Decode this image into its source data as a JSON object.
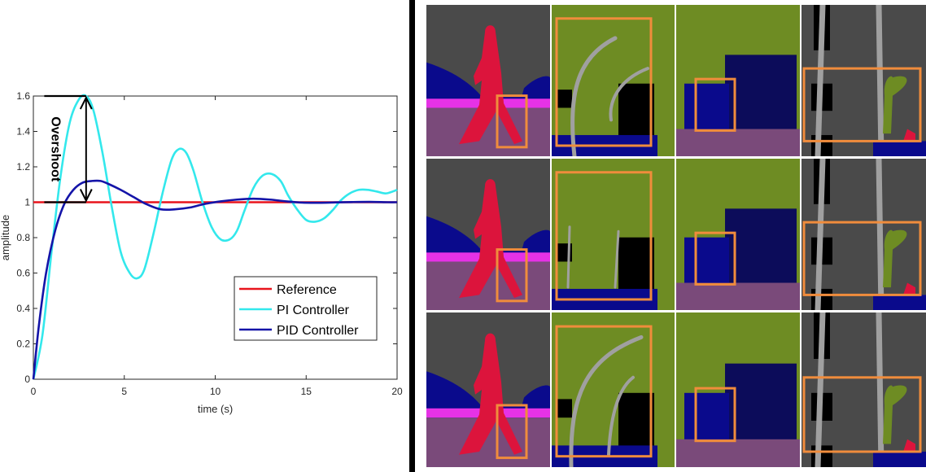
{
  "chart_data": {
    "type": "line",
    "title": "",
    "xlabel": "time (s)",
    "ylabel": "amplitude",
    "xlim": [
      0,
      20
    ],
    "ylim": [
      0,
      1.6
    ],
    "x_ticks": [
      "0",
      "5",
      "10",
      "15",
      "20"
    ],
    "y_ticks": [
      "0",
      "0.2",
      "0.4",
      "0.6",
      "0.8",
      "1",
      "1.2",
      "1.4",
      "1.6"
    ],
    "grid": false,
    "legend_position": "lower-right",
    "series": [
      {
        "name": "Reference",
        "color": "#e8141c",
        "x": [
          0,
          20
        ],
        "y": [
          1,
          1
        ]
      },
      {
        "name": "PI Controller",
        "color": "#33e8ec",
        "x": [
          0,
          0.5,
          1,
          1.5,
          2,
          2.5,
          2.9,
          3.3,
          3.8,
          4.3,
          4.8,
          5.3,
          5.7,
          6.1,
          6.6,
          7.1,
          7.6,
          8.0,
          8.4,
          8.8,
          9.3,
          9.8,
          10.3,
          10.8,
          11.2,
          11.6,
          12.1,
          12.6,
          13.1,
          13.6,
          14.0,
          14.5,
          15.0,
          15.5,
          16.0,
          16.5,
          16.9,
          17.4,
          17.9,
          18.4,
          18.9,
          19.4,
          20.0
        ],
        "y": [
          0,
          0.25,
          0.72,
          1.15,
          1.45,
          1.58,
          1.6,
          1.52,
          1.28,
          0.98,
          0.72,
          0.6,
          0.57,
          0.62,
          0.82,
          1.05,
          1.24,
          1.3,
          1.28,
          1.18,
          1.0,
          0.86,
          0.79,
          0.79,
          0.84,
          0.95,
          1.08,
          1.15,
          1.16,
          1.12,
          1.04,
          0.96,
          0.9,
          0.89,
          0.91,
          0.96,
          1.01,
          1.05,
          1.07,
          1.07,
          1.06,
          1.05,
          1.07
        ]
      },
      {
        "name": "PID Controller",
        "color": "#1414a8",
        "x": [
          0,
          0.3,
          0.7,
          1.2,
          1.7,
          2.2,
          2.7,
          3.2,
          3.7,
          4.2,
          4.8,
          5.5,
          6.2,
          7.0,
          7.8,
          8.6,
          9.4,
          10.3,
          11.2,
          12.1,
          13.0,
          13.9,
          14.8,
          15.7,
          16.6,
          17.5,
          18.5,
          19.5,
          20.0
        ],
        "y": [
          0,
          0.3,
          0.6,
          0.84,
          0.99,
          1.07,
          1.11,
          1.12,
          1.12,
          1.1,
          1.07,
          1.03,
          0.99,
          0.96,
          0.96,
          0.97,
          0.99,
          1.005,
          1.015,
          1.02,
          1.015,
          1.005,
          0.998,
          0.997,
          0.999,
          1.001,
          1.002,
          1.0,
          1.0
        ]
      }
    ],
    "annotations": [
      {
        "text": "Overshoot"
      }
    ]
  },
  "colors": {
    "gray": "#4a4a4a",
    "green": "#6e8c23",
    "purple": "#7a4a7a",
    "navy": "#0a0a8c",
    "red": "#dc143c",
    "magenta": "#e632e6",
    "black": "#000000",
    "lightgray": "#a0a0a0",
    "orange": "#f08c3c",
    "white": "#ffffff"
  },
  "segmentation_grid": {
    "rows": 3,
    "columns": 4
  }
}
